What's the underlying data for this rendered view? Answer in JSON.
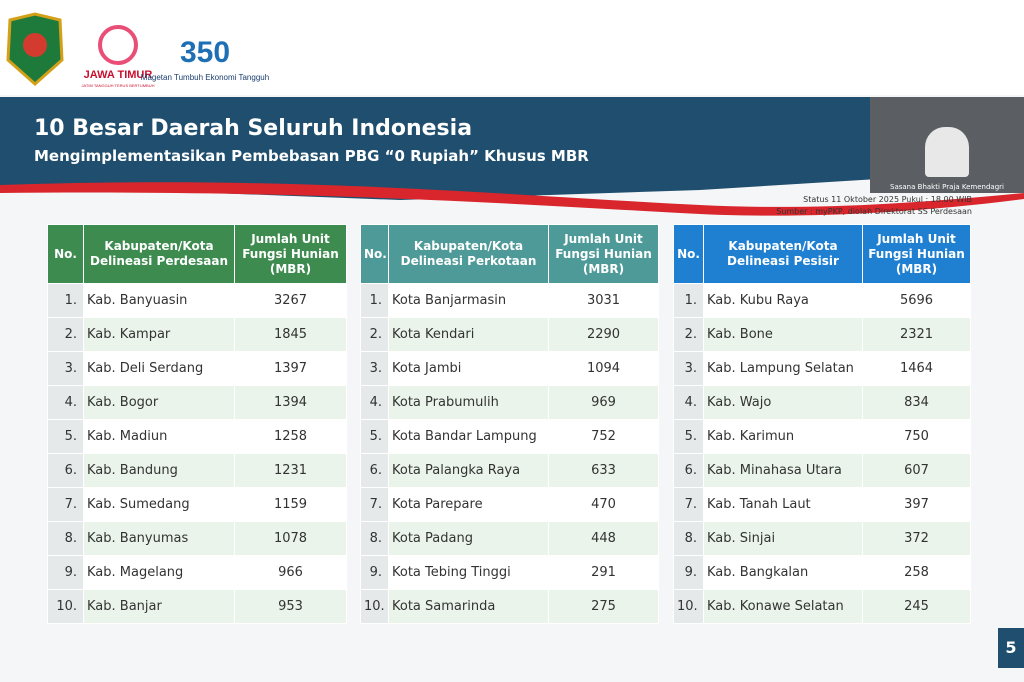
{
  "logos": {
    "province": "JAWA TIMUR",
    "province_tagline": "JATIM TANGGUH TERUS BERTUMBUH",
    "regency_tagline": "Magetan Tumbuh Ekonomi Tangguh",
    "anniversary": "350"
  },
  "header": {
    "title": "10 Besar Daerah Seluruh Indonesia",
    "subtitle": "Mengimplementasikan Pembebasan PBG “0 Rupiah” Khusus MBR",
    "status": "Status 11 Oktober 2025 Pukul : 18.00 WIB",
    "source": "Sumber : myPKP, diolah Direktorat SS Perdesaan"
  },
  "video_caption": "Sasana Bhakti Praja Kemendagri",
  "tables": [
    {
      "columns": [
        "No.",
        "Kabupaten/Kota Delineasi Perdesaan",
        "Jumlah Unit Fungsi Hunian (MBR)"
      ],
      "rows": [
        [
          "1.",
          "Kab. Banyuasin",
          3267
        ],
        [
          "2.",
          "Kab. Kampar",
          1845
        ],
        [
          "3.",
          "Kab. Deli Serdang",
          1397
        ],
        [
          "4.",
          "Kab. Bogor",
          1394
        ],
        [
          "5.",
          "Kab. Madiun",
          1258
        ],
        [
          "6.",
          "Kab. Bandung",
          1231
        ],
        [
          "7.",
          "Kab. Sumedang",
          1159
        ],
        [
          "8.",
          "Kab. Banyumas",
          1078
        ],
        [
          "9.",
          "Kab. Magelang",
          966
        ],
        [
          "10.",
          "Kab. Banjar",
          953
        ]
      ]
    },
    {
      "columns": [
        "No.",
        "Kabupaten/Kota Delineasi Perkotaan",
        "Jumlah Unit Fungsi Hunian (MBR)"
      ],
      "rows": [
        [
          "1.",
          "Kota Banjarmasin",
          3031
        ],
        [
          "2.",
          "Kota Kendari",
          2290
        ],
        [
          "3.",
          "Kota Jambi",
          1094
        ],
        [
          "4.",
          "Kota Prabumulih",
          969
        ],
        [
          "5.",
          "Kota Bandar Lampung",
          752
        ],
        [
          "6.",
          "Kota Palangka Raya",
          633
        ],
        [
          "7.",
          "Kota Parepare",
          470
        ],
        [
          "8.",
          "Kota Padang",
          448
        ],
        [
          "9.",
          "Kota Tebing Tinggi",
          291
        ],
        [
          "10.",
          "Kota Samarinda",
          275
        ]
      ]
    },
    {
      "columns": [
        "No.",
        "Kabupaten/Kota Delineasi Pesisir",
        "Jumlah Unit Fungsi Hunian (MBR)"
      ],
      "rows": [
        [
          "1.",
          "Kab. Kubu Raya",
          5696
        ],
        [
          "2.",
          "Kab. Bone",
          2321
        ],
        [
          "3.",
          "Kab. Lampung Selatan",
          1464
        ],
        [
          "4.",
          "Kab. Wajo",
          834
        ],
        [
          "5.",
          "Kab. Karimun",
          750
        ],
        [
          "6.",
          "Kab. Minahasa Utara",
          607
        ],
        [
          "7.",
          "Kab. Tanah Laut",
          397
        ],
        [
          "8.",
          "Kab. Sinjai",
          372
        ],
        [
          "9.",
          "Kab. Bangkalan",
          258
        ],
        [
          "10.",
          "Kab. Konawe Selatan",
          245
        ]
      ]
    }
  ],
  "page_number": "5"
}
